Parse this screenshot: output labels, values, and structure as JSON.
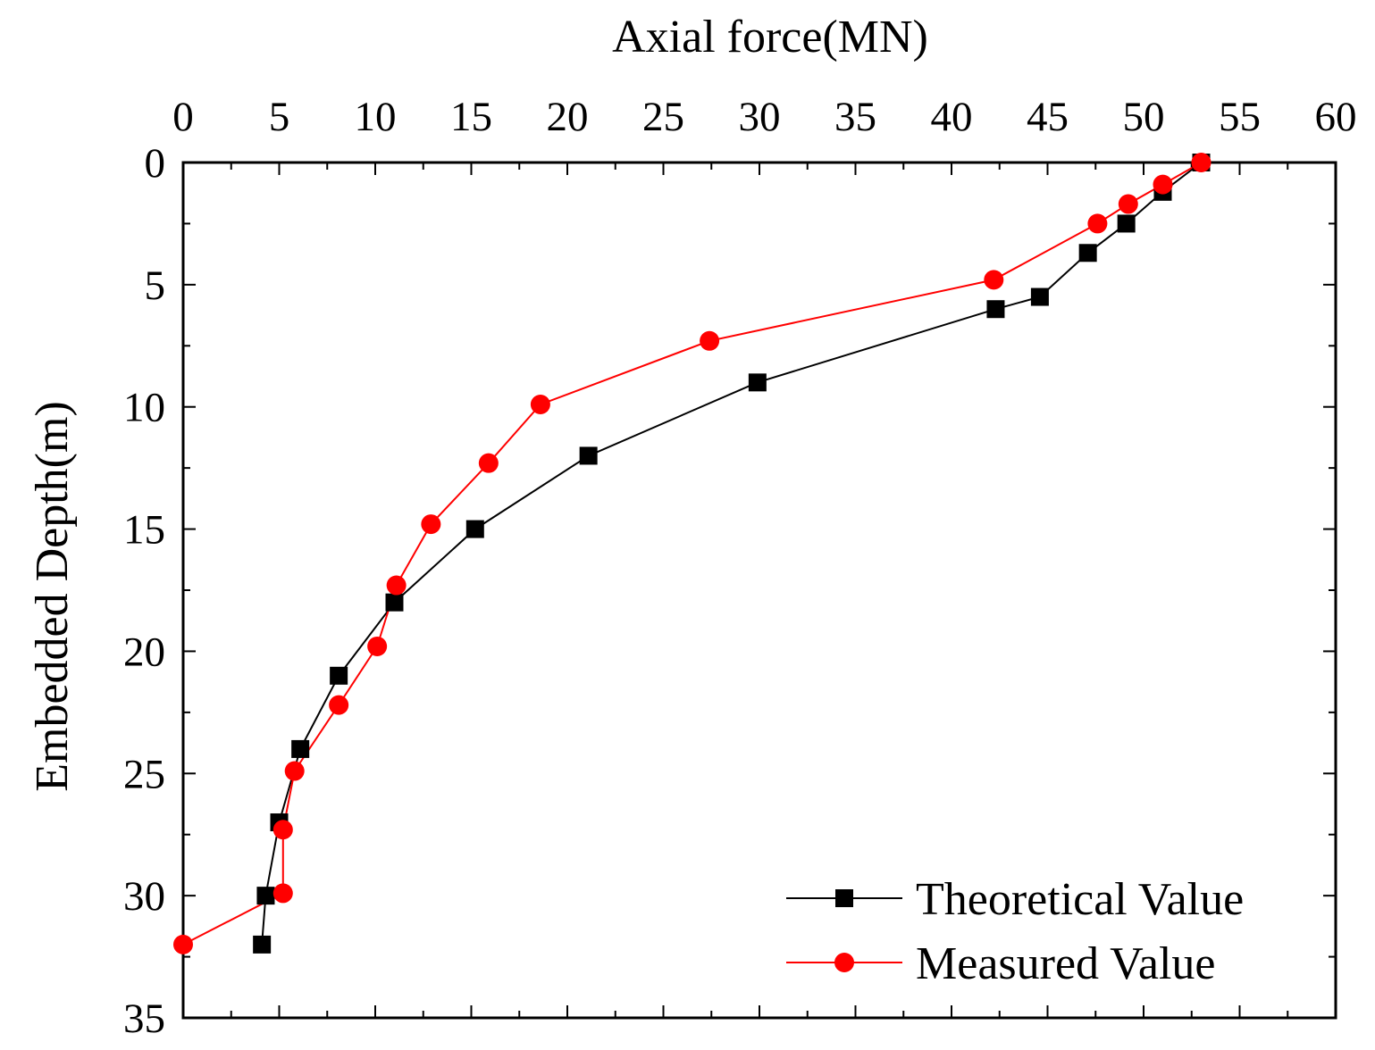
{
  "chart_data": {
    "type": "line",
    "title": "",
    "xlabel": "Axial force(MN)",
    "ylabel": "Embedded Depth(m)",
    "x_axis_position": "top",
    "y_axis_inverted": true,
    "xlim": [
      0,
      60
    ],
    "ylim": [
      0,
      35
    ],
    "xticks": [
      0,
      5,
      10,
      15,
      20,
      25,
      30,
      35,
      40,
      45,
      50,
      55,
      60
    ],
    "yticks": [
      0,
      5,
      10,
      15,
      20,
      25,
      30,
      35
    ],
    "legend_position": "bottom-right",
    "series": [
      {
        "name": "Theoretical Value",
        "color": "#000000",
        "marker": "square",
        "x": [
          53.0,
          51.0,
          49.1,
          47.1,
          44.6,
          42.3,
          29.9,
          21.1,
          15.2,
          11.0,
          8.1,
          6.1,
          5.0,
          4.3,
          4.1
        ],
        "y": [
          0,
          1.2,
          2.5,
          3.7,
          5.5,
          6.0,
          9.0,
          12.0,
          15.0,
          18.0,
          21.0,
          24.0,
          27.0,
          30.0,
          32.0
        ]
      },
      {
        "name": "Measured Value",
        "color": "#ff0000",
        "marker": "circle",
        "x": [
          53.0,
          51.0,
          49.2,
          47.6,
          42.2,
          27.4,
          18.6,
          15.9,
          12.9,
          11.1,
          10.1,
          8.1,
          5.8,
          5.2,
          5.2,
          0
        ],
        "y": [
          0,
          0.9,
          1.7,
          2.5,
          4.8,
          7.3,
          9.9,
          12.3,
          14.8,
          17.3,
          19.8,
          22.2,
          24.9,
          27.3,
          29.9,
          32.0
        ]
      }
    ]
  }
}
